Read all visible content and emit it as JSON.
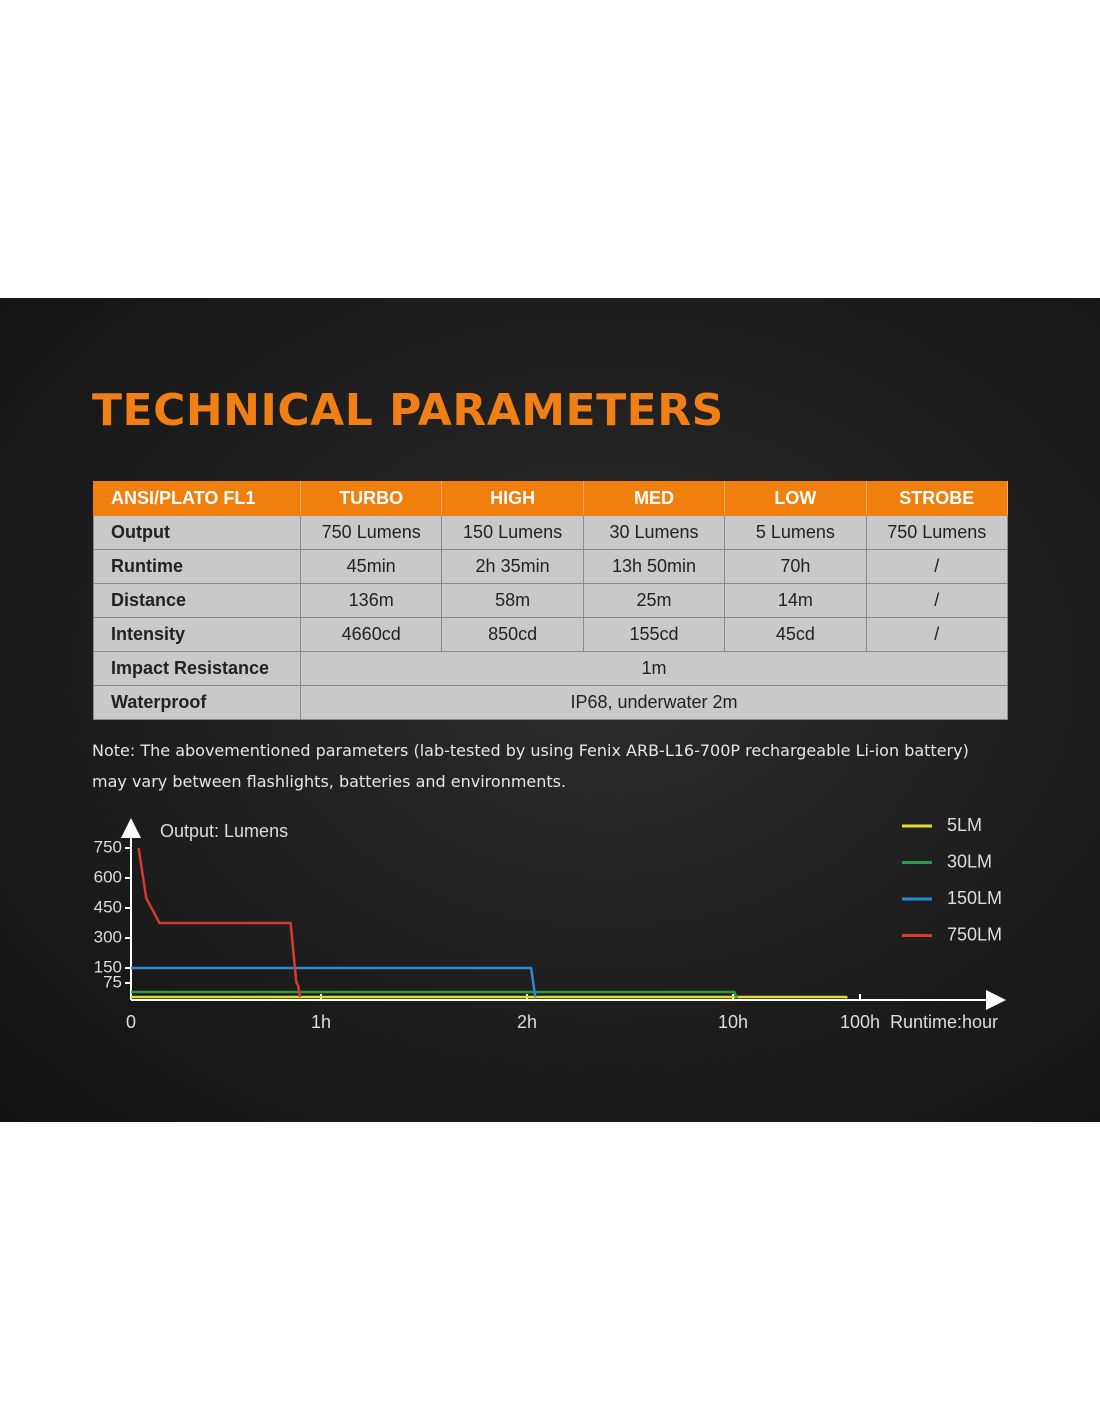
{
  "header": {
    "title": "TECHNICAL PARAMETERS"
  },
  "table": {
    "header": [
      "ANSI/PLATO FL1",
      "TURBO",
      "HIGH",
      "MED",
      "LOW",
      "STROBE"
    ],
    "rows": [
      [
        "Output",
        "750 Lumens",
        "150 Lumens",
        "30 Lumens",
        "5 Lumens",
        "750 Lumens"
      ],
      [
        "Runtime",
        "45min",
        "2h 35min",
        "13h 50min",
        "70h",
        "/"
      ],
      [
        "Distance",
        "136m",
        "58m",
        "25m",
        "14m",
        "/"
      ],
      [
        "Intensity",
        "4660cd",
        "850cd",
        "155cd",
        "45cd",
        "/"
      ],
      [
        "Impact Resistance",
        "1m"
      ],
      [
        "Waterproof",
        "IP68, underwater 2m"
      ]
    ]
  },
  "note": [
    "Note: The abovementioned parameters (lab-tested by using Fenix ARB-L16-700P rechargeable Li-ion battery)",
    "may vary between flashlights, batteries and environments."
  ],
  "chart_data": {
    "type": "line",
    "y_label": "Output: Lumens",
    "x_label": "Runtime:hour",
    "xlim": [
      0,
      5.1
    ],
    "xticks": [
      0,
      {
        "value": 1,
        "label": "1h"
      },
      {
        "value": 2,
        "label": "2h"
      },
      {
        "value": 3,
        "label": "10h"
      },
      {
        "value": 4,
        "label": "100h"
      }
    ],
    "ylim": [
      0,
      890
    ],
    "yticks": [
      75,
      150,
      300,
      450,
      600,
      750
    ],
    "series": [
      {
        "name": "5LM",
        "color": "#e6dc2e",
        "x": [
          0,
          3.89,
          3.9
        ],
        "values": [
          5,
          5,
          0
        ]
      },
      {
        "name": "30LM",
        "color": "#2f9a4c",
        "x": [
          0,
          3.01,
          3.03
        ],
        "values": [
          30,
          30,
          0
        ]
      },
      {
        "name": "150LM",
        "color": "#2b8bd2",
        "x": [
          0,
          2.02,
          2.04
        ],
        "values": [
          150,
          150,
          5
        ]
      },
      {
        "name": "750LM",
        "color": "#d63a32",
        "x": [
          0.04,
          0.08,
          0.15,
          0.84,
          0.87,
          0.88,
          0.89
        ],
        "values": [
          750,
          500,
          375,
          375,
          80,
          60,
          5
        ]
      }
    ]
  }
}
